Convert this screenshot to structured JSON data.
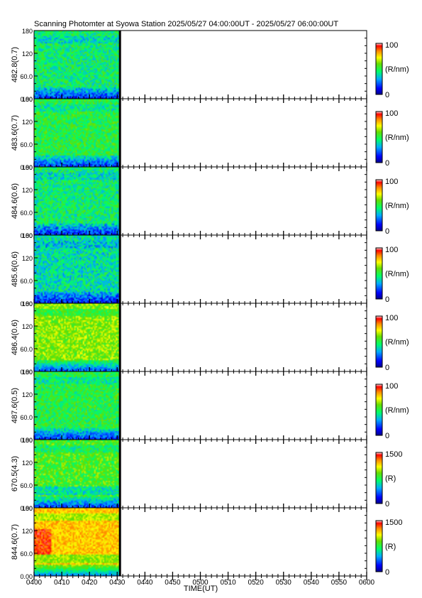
{
  "chart_data": {
    "type": "heatmap",
    "title": "Scanning Photomter at Syowa Station  2025/05/27 04:00:00UT - 2025/05/27 06:00:00UT",
    "xlabel": "TIME(UT)",
    "x_ticks": [
      "0400",
      "0410",
      "0420",
      "0430",
      "0440",
      "0450",
      "0500",
      "0510",
      "0520",
      "0530",
      "0540",
      "0550",
      "0600"
    ],
    "xlim": [
      "0400",
      "0600"
    ],
    "data_end": "0431",
    "y_ticks": [
      "0.00",
      "60.0",
      "120",
      "180"
    ],
    "ylim": [
      0,
      180
    ],
    "panels": [
      {
        "label": "482.8(0.7)",
        "cbar_max": "100",
        "cbar_min": "0",
        "unit": "(R/nm)",
        "level": 0.45,
        "band": 0.75
      },
      {
        "label": "483.6(0.7)",
        "cbar_max": "100",
        "cbar_min": "0",
        "unit": "(R/nm)",
        "level": 0.5,
        "band": 0.7
      },
      {
        "label": "484.6(0.6)",
        "cbar_max": "100",
        "cbar_min": "0",
        "unit": "(R/nm)",
        "level": 0.45,
        "band": 0.75
      },
      {
        "label": "485.6(0.6)",
        "cbar_max": "100",
        "cbar_min": "0",
        "unit": "(R/nm)",
        "level": 0.4,
        "band": 0.8
      },
      {
        "label": "486.4(0.6)",
        "cbar_max": "100",
        "cbar_min": "0",
        "unit": "(R/nm)",
        "level": 0.62,
        "band": 0.6
      },
      {
        "label": "487.6(0.5)",
        "cbar_max": "100",
        "cbar_min": "0",
        "unit": "(R/nm)",
        "level": 0.5,
        "band": 0.7
      },
      {
        "label": "670.5(4.3)",
        "cbar_max": "1500",
        "cbar_min": "0",
        "unit": "(R)",
        "level": 0.55,
        "band": 0.7
      },
      {
        "label": "844.6(0.7)",
        "cbar_max": "1500",
        "cbar_min": "0",
        "unit": "(R)",
        "level": 0.78,
        "band": 0.45
      }
    ],
    "colormap": [
      "#00008b",
      "#0000ff",
      "#00aaff",
      "#00ff66",
      "#66dd00",
      "#ffff00",
      "#ff8800",
      "#ff0000",
      "#ffffff"
    ]
  }
}
